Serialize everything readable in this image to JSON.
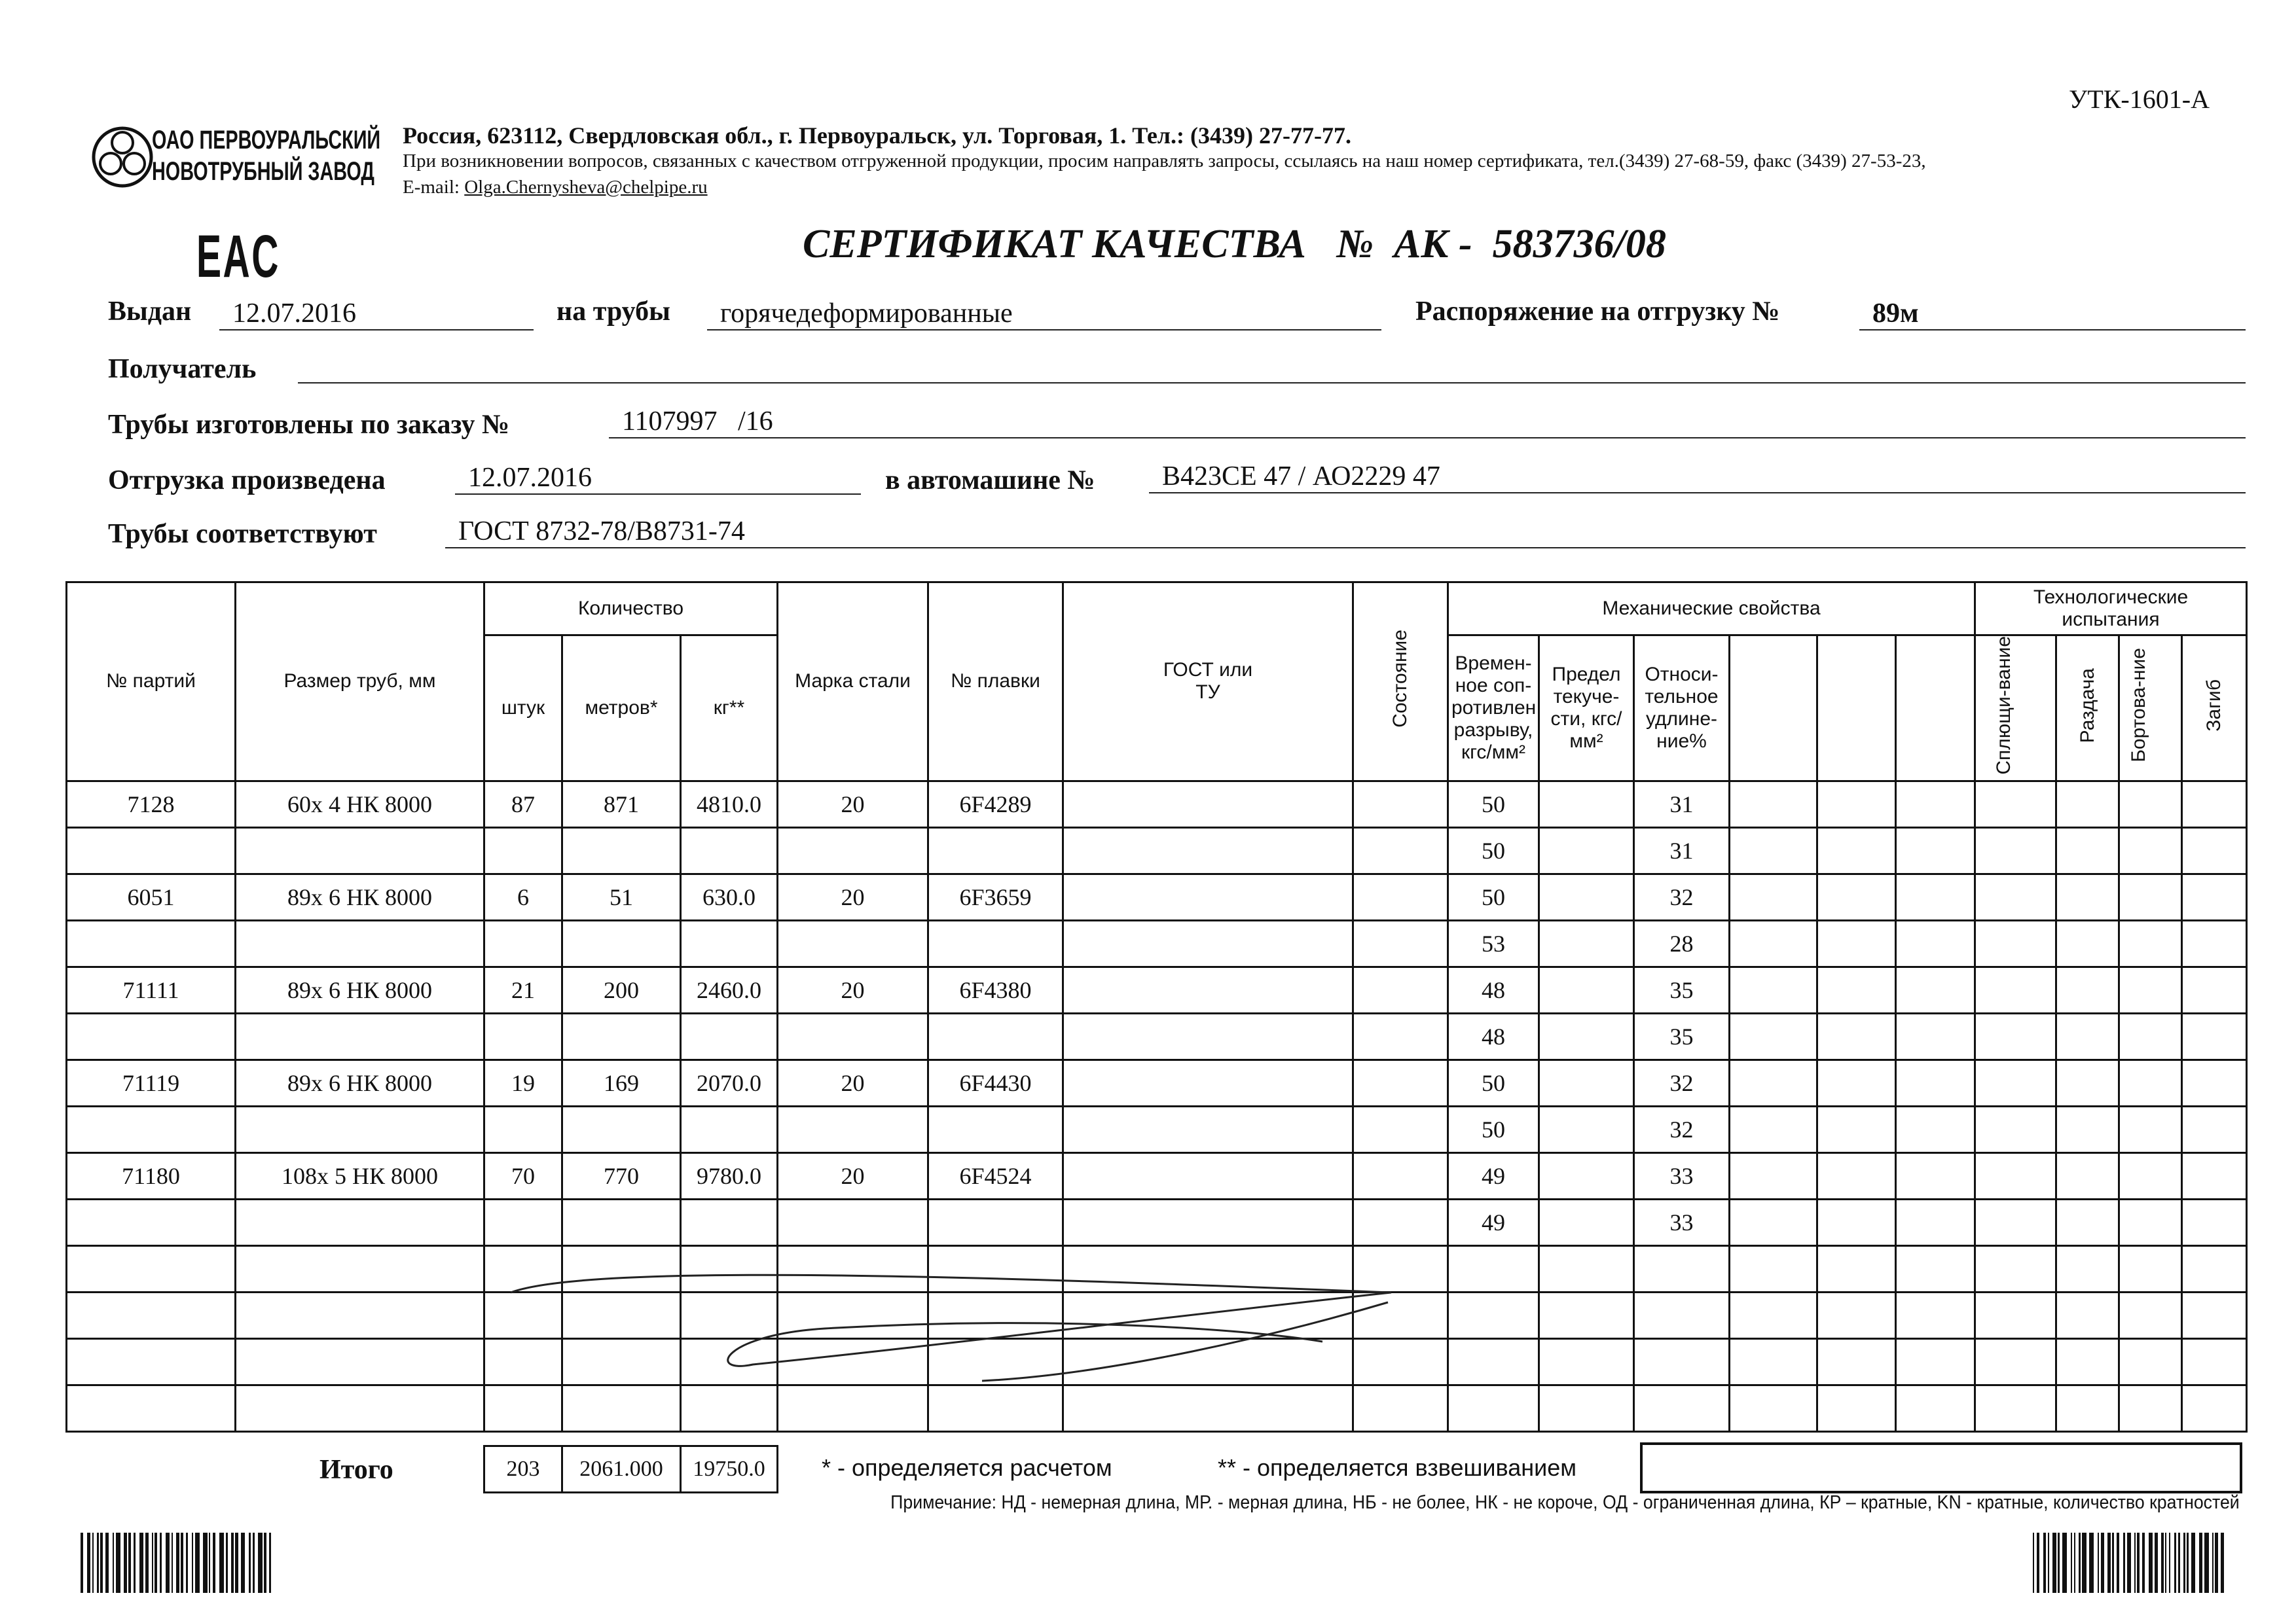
{
  "form_code": "УТК-1601-А",
  "company": {
    "logo_line1": "ОАО ПЕРВОУРАЛЬСКИЙ",
    "logo_line2": "НОВОТРУБНЫЙ ЗАВОД",
    "address": "Россия, 623112, Свердловская обл., г. Первоуральск, ул. Торговая, 1. Тел.: (3439) 27-77-77.",
    "note": "При возникновении вопросов, связанных с качеством отгруженной продукции, просим направлять запросы, ссылаясь на наш номер сертификата, тел.(3439) 27-68-59, факс (3439) 27-53-23,",
    "email_label": "E-mail: ",
    "email": "Olga.Chernysheva@chelpipe.ru"
  },
  "eac_mark": "EAC",
  "title": "СЕРТИФИКАТ КАЧЕСТВА   №  АК -  583736/08",
  "fields": {
    "issued_label": "Выдан",
    "issued_value": "12.07.2016",
    "pipes_label": "на трубы",
    "pipes_value": "горячедеформированные",
    "order_label": "Распоряжение на отгрузку №",
    "order_value": "89м",
    "recipient_label": "Получатель",
    "recipient_value": "",
    "made_label": "Трубы изготовлены по заказу №",
    "made_value": "1107997   /16",
    "shipped_label": "Отгрузка произведена",
    "shipped_value": "12.07.2016",
    "truck_label": "в автомашине №",
    "truck_value": "В423СЕ 47 / АО2229 47",
    "conform_label": "Трубы соответствуют",
    "conform_value": "ГОСТ 8732-78/В8731-74"
  },
  "table": {
    "headers": {
      "batch": "№ партий",
      "size": "Размер труб, мм",
      "quantity": "Количество",
      "pcs": "штук",
      "meters": "метров*",
      "kg": "кг**",
      "steel": "Марка стали",
      "heat": "№ плавки",
      "gost": "ГОСТ или ТУ",
      "state": "Состояние",
      "mech": "Механические свойства",
      "tensile": "Времен-ное соп-ротивлен. разрыву, кгс/мм²",
      "yield": "Предел текуче-сти, кгс/мм²",
      "elong": "Относи-тельное удлине-ние%",
      "tech": "Технологические испытания",
      "flatten": "Сплющи-вание",
      "expand": "Раздача",
      "flange": "Бортова-ние",
      "bend": "Загиб"
    },
    "rows": [
      {
        "batch": "7128",
        "size": "60х 4 НК 8000",
        "pcs": "87",
        "meters": "871",
        "kg": "4810.0",
        "steel": "20",
        "heat": "6F4289",
        "tensile": "50",
        "elong": "31"
      },
      {
        "tensile": "50",
        "elong": "31"
      },
      {
        "batch": "6051",
        "size": "89х 6 НК 8000",
        "pcs": "6",
        "meters": "51",
        "kg": "630.0",
        "steel": "20",
        "heat": "6F3659",
        "tensile": "50",
        "elong": "32"
      },
      {
        "tensile": "53",
        "elong": "28"
      },
      {
        "batch": "71111",
        "size": "89х 6 НК 8000",
        "pcs": "21",
        "meters": "200",
        "kg": "2460.0",
        "steel": "20",
        "heat": "6F4380",
        "tensile": "48",
        "elong": "35"
      },
      {
        "tensile": "48",
        "elong": "35"
      },
      {
        "batch": "71119",
        "size": "89х 6 НК 8000",
        "pcs": "19",
        "meters": "169",
        "kg": "2070.0",
        "steel": "20",
        "heat": "6F4430",
        "tensile": "50",
        "elong": "32"
      },
      {
        "tensile": "50",
        "elong": "32"
      },
      {
        "batch": "71180",
        "size": "108х 5 НК 8000",
        "pcs": "70",
        "meters": "770",
        "kg": "9780.0",
        "steel": "20",
        "heat": "6F4524",
        "tensile": "49",
        "elong": "33"
      },
      {
        "tensile": "49",
        "elong": "33"
      },
      {},
      {},
      {},
      {}
    ]
  },
  "totals": {
    "label": "Итого",
    "pcs": "203",
    "meters": "2061.000",
    "kg": "19750.0"
  },
  "footnotes": {
    "calc": "* - определяется расчетом",
    "weigh": "** - определяется взвешиванием",
    "remark": "Примечание: НД - немерная длина, МР. - мерная длина, НБ - не более, НК - не короче, ОД - ограниченная длина, КР – кратные, KN - кратные, количество кратностей"
  }
}
